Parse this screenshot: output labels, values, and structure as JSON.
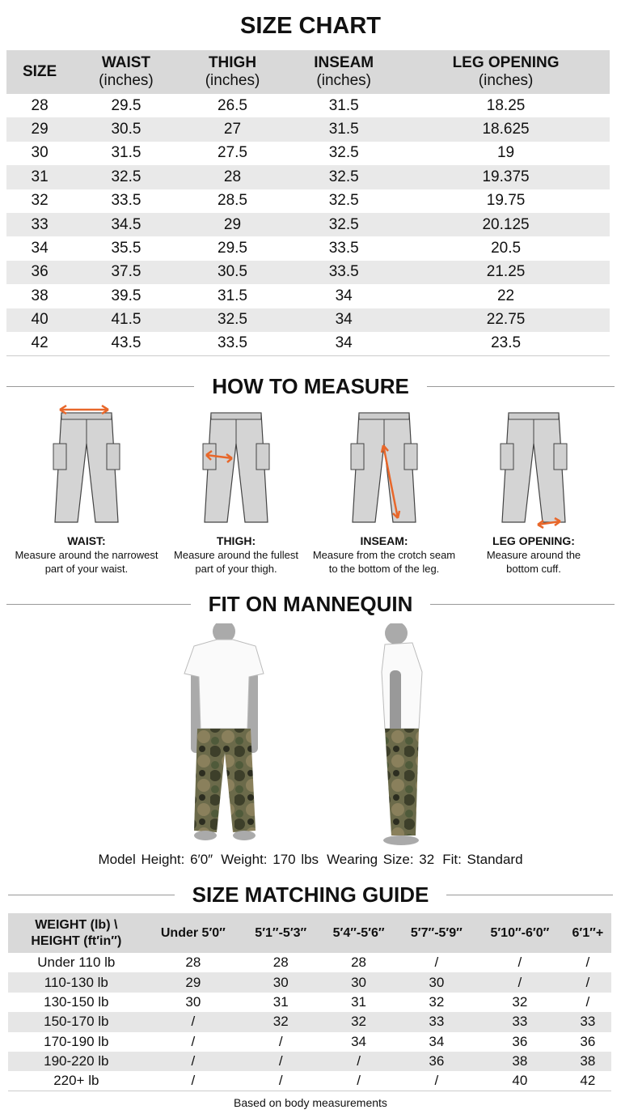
{
  "title": "SIZE CHART",
  "size_table": {
    "headers": [
      {
        "name": "SIZE",
        "unit": ""
      },
      {
        "name": "WAIST",
        "unit": "(inches)"
      },
      {
        "name": "THIGH",
        "unit": "(inches)"
      },
      {
        "name": "INSEAM",
        "unit": "(inches)"
      },
      {
        "name": "LEG OPENING",
        "unit": "(inches)"
      }
    ],
    "rows": [
      [
        "28",
        "29.5",
        "26.5",
        "31.5",
        "18.25"
      ],
      [
        "29",
        "30.5",
        "27",
        "31.5",
        "18.625"
      ],
      [
        "30",
        "31.5",
        "27.5",
        "32.5",
        "19"
      ],
      [
        "31",
        "32.5",
        "28",
        "32.5",
        "19.375"
      ],
      [
        "32",
        "33.5",
        "28.5",
        "32.5",
        "19.75"
      ],
      [
        "33",
        "34.5",
        "29",
        "32.5",
        "20.125"
      ],
      [
        "34",
        "35.5",
        "29.5",
        "33.5",
        "20.5"
      ],
      [
        "36",
        "37.5",
        "30.5",
        "33.5",
        "21.25"
      ],
      [
        "38",
        "39.5",
        "31.5",
        "34",
        "22"
      ],
      [
        "40",
        "41.5",
        "32.5",
        "34",
        "22.75"
      ],
      [
        "42",
        "43.5",
        "33.5",
        "34",
        "23.5"
      ]
    ]
  },
  "how_to_measure": {
    "heading": "HOW TO MEASURE",
    "arrow_color": "#e8672a",
    "items": [
      {
        "label": "WAIST:",
        "desc1": "Measure around the narrowest",
        "desc2": "part of your waist."
      },
      {
        "label": "THIGH:",
        "desc1": "Measure around the fullest",
        "desc2": "part of your thigh."
      },
      {
        "label": "INSEAM:",
        "desc1": "Measure from the crotch seam",
        "desc2": "to the bottom of the leg."
      },
      {
        "label": "LEG OPENING:",
        "desc1": "Measure around the",
        "desc2": "bottom cuff."
      }
    ]
  },
  "fit": {
    "heading": "FIT ON MANNEQUIN",
    "model_height": "Model Height: 6′0″",
    "weight": "Weight: 170 lbs",
    "wearing": "Wearing Size: 32",
    "fit": "Fit: Standard"
  },
  "matching": {
    "heading": "SIZE MATCHING GUIDE",
    "corner1": "WEIGHT (lb) \\",
    "corner2": "HEIGHT (ft′in″)",
    "heights": [
      "Under 5′0″",
      "5′1″-5′3″",
      "5′4″-5′6″",
      "5′7″-5′9″",
      "5′10″-6′0″",
      "6′1″+"
    ],
    "rows": [
      [
        "Under 110 lb",
        "28",
        "28",
        "28",
        "/",
        "/",
        "/"
      ],
      [
        "110-130 lb",
        "29",
        "30",
        "30",
        "30",
        "/",
        "/"
      ],
      [
        "130-150 lb",
        "30",
        "31",
        "31",
        "32",
        "32",
        "/"
      ],
      [
        "150-170 lb",
        "/",
        "32",
        "32",
        "33",
        "33",
        "33"
      ],
      [
        "170-190 lb",
        "/",
        "/",
        "34",
        "34",
        "36",
        "36"
      ],
      [
        "190-220 lb",
        "/",
        "/",
        "/",
        "36",
        "38",
        "38"
      ],
      [
        "220+ lb",
        "/",
        "/",
        "/",
        "/",
        "40",
        "42"
      ]
    ],
    "footnote": "Based on body measurements"
  }
}
